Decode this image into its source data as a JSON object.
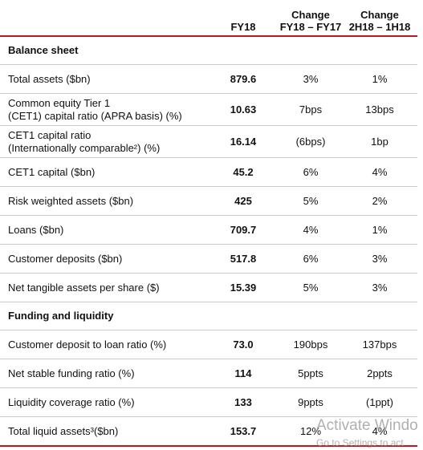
{
  "columns": [
    {
      "lines": [
        "FY18"
      ]
    },
    {
      "lines": [
        "Change",
        "FY18 – FY17"
      ]
    },
    {
      "lines": [
        "Change",
        "2H18 – 1H18"
      ]
    }
  ],
  "sections": [
    {
      "title": "Balance sheet",
      "rows": [
        {
          "label": [
            "Total assets ($bn)"
          ],
          "values": [
            "879.6",
            "3%",
            "1%"
          ]
        },
        {
          "label": [
            "Common equity Tier 1",
            "(CET1) capital ratio (APRA basis)  (%)"
          ],
          "values": [
            "10.63",
            "7bps",
            "13bps"
          ]
        },
        {
          "label": [
            "CET1 capital ratio",
            "(Internationally comparable²) (%)"
          ],
          "values": [
            "16.14",
            "(6bps)",
            "1bp"
          ]
        },
        {
          "label": [
            "CET1 capital ($bn)"
          ],
          "values": [
            "45.2",
            "6%",
            "4%"
          ]
        },
        {
          "label": [
            "Risk weighted assets ($bn)"
          ],
          "values": [
            "425",
            "5%",
            "2%"
          ]
        },
        {
          "label": [
            "Loans ($bn)"
          ],
          "values": [
            "709.7",
            "4%",
            "1%"
          ]
        },
        {
          "label": [
            "Customer deposits ($bn)"
          ],
          "values": [
            "517.8",
            "6%",
            "3%"
          ]
        },
        {
          "label": [
            "Net tangible assets per share ($)"
          ],
          "values": [
            "15.39",
            "5%",
            "3%"
          ]
        }
      ]
    },
    {
      "title": "Funding and liquidity",
      "rows": [
        {
          "label": [
            "Customer deposit to loan ratio (%)"
          ],
          "values": [
            "73.0",
            "190bps",
            "137bps"
          ]
        },
        {
          "label": [
            "Net stable funding ratio (%)"
          ],
          "values": [
            "114",
            "5ppts",
            "2ppts"
          ]
        },
        {
          "label": [
            "Liquidity coverage ratio (%)"
          ],
          "values": [
            "133",
            "9ppts",
            "(1ppt)"
          ]
        },
        {
          "label": [
            "Total liquid assets³($bn)"
          ],
          "values": [
            "153.7",
            "12%",
            "4%"
          ]
        }
      ]
    }
  ],
  "watermark": [
    "Activate Windo",
    "Go to Settings to act"
  ]
}
